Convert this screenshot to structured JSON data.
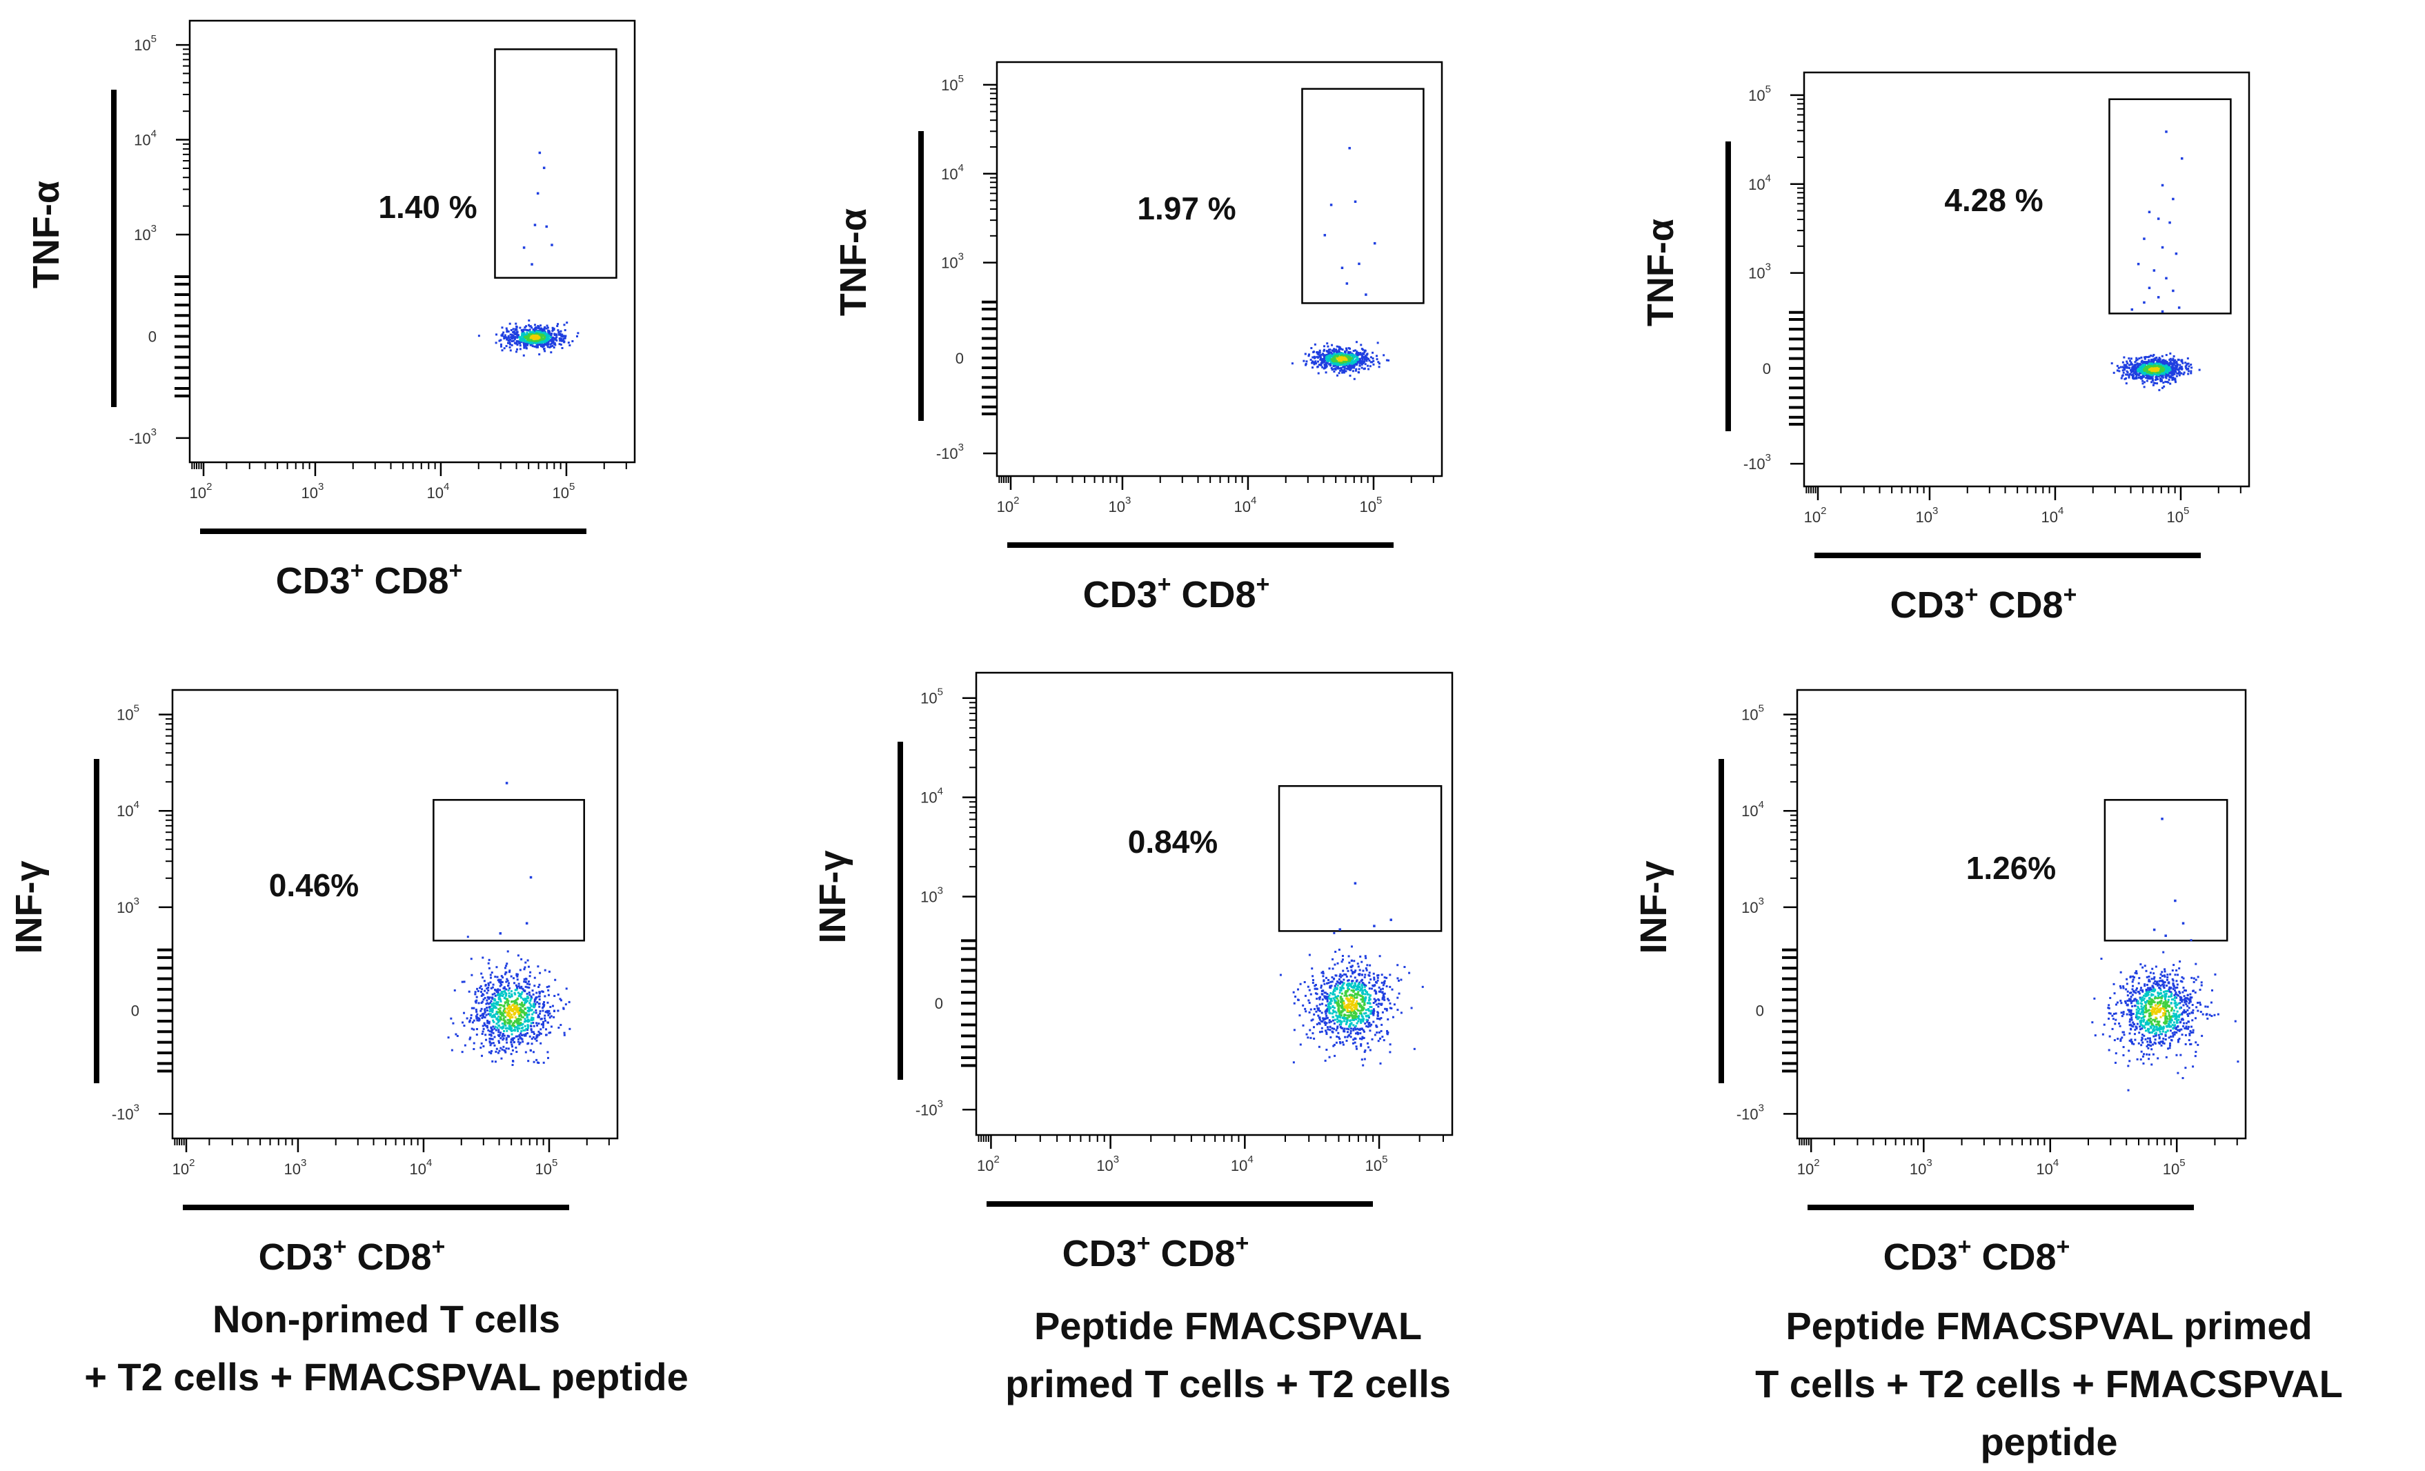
{
  "chart_data": [
    {
      "type": "scatter",
      "panel": "row1-col1",
      "ylabel": "TNF-α",
      "xlabel_base": "CD3",
      "xlabel_sup1": "+",
      "xlabel_mid": " CD8",
      "xlabel_sup2": "+",
      "x_scale": "biexponential",
      "y_scale": "biexponential",
      "x_ticks": [
        {
          "label": "10",
          "exp": "2",
          "value": 100
        },
        {
          "label": "10",
          "exp": "3",
          "value": 1000
        },
        {
          "label": "10",
          "exp": "4",
          "value": 10000
        },
        {
          "label": "10",
          "exp": "5",
          "value": 100000
        }
      ],
      "y_ticks": [
        {
          "label": "-10",
          "exp": "3",
          "value": -1000
        },
        {
          "label": "0",
          "exp": "",
          "value": 0
        },
        {
          "label": "10",
          "exp": "3",
          "value": 1000
        },
        {
          "label": "10",
          "exp": "4",
          "value": 10000
        },
        {
          "label": "10",
          "exp": "5",
          "value": 100000
        }
      ],
      "gate": {
        "x_range": [
          27000,
          250000
        ],
        "y_range": [
          350,
          90000
        ],
        "percent_label": "1.40 %"
      },
      "population": {
        "x_center": 55000,
        "y_center": 0,
        "cells": 600,
        "spread": "tight"
      },
      "sparse_events": [
        [
          60000,
          7500
        ],
        [
          65000,
          5200
        ],
        [
          58000,
          2800
        ],
        [
          55000,
          1300
        ],
        [
          68000,
          1250
        ],
        [
          45000,
          750
        ],
        [
          75000,
          800
        ],
        [
          52000,
          500
        ]
      ]
    },
    {
      "type": "scatter",
      "panel": "row1-col2",
      "ylabel": "TNF-α",
      "xlabel_base": "CD3",
      "xlabel_sup1": "+",
      "xlabel_mid": " CD8",
      "xlabel_sup2": "+",
      "x_scale": "biexponential",
      "y_scale": "biexponential",
      "x_ticks": [
        {
          "label": "10",
          "exp": "2",
          "value": 100
        },
        {
          "label": "10",
          "exp": "3",
          "value": 1000
        },
        {
          "label": "10",
          "exp": "4",
          "value": 10000
        },
        {
          "label": "10",
          "exp": "5",
          "value": 100000
        }
      ],
      "y_ticks": [
        {
          "label": "-10",
          "exp": "3",
          "value": -1000
        },
        {
          "label": "0",
          "exp": "",
          "value": 0
        },
        {
          "label": "10",
          "exp": "3",
          "value": 1000
        },
        {
          "label": "10",
          "exp": "4",
          "value": 10000
        },
        {
          "label": "10",
          "exp": "5",
          "value": 100000
        }
      ],
      "gate": {
        "x_range": [
          27000,
          250000
        ],
        "y_range": [
          350,
          90000
        ],
        "percent_label": "1.97 %"
      },
      "population": {
        "x_center": 55000,
        "y_center": 0,
        "cells": 600,
        "spread": "tight"
      },
      "sparse_events": [
        [
          63000,
          20000
        ],
        [
          45000,
          4600
        ],
        [
          70000,
          5000
        ],
        [
          40000,
          2100
        ],
        [
          100000,
          1700
        ],
        [
          55000,
          900
        ],
        [
          75000,
          1000
        ],
        [
          60000,
          600
        ],
        [
          85000,
          450
        ]
      ]
    },
    {
      "type": "scatter",
      "panel": "row1-col3",
      "ylabel": "TNF-α",
      "xlabel_base": "CD3",
      "xlabel_sup1": "+",
      "xlabel_mid": " CD8",
      "xlabel_sup2": "+",
      "x_scale": "biexponential",
      "y_scale": "biexponential",
      "x_ticks": [
        {
          "label": "10",
          "exp": "2",
          "value": 100
        },
        {
          "label": "10",
          "exp": "3",
          "value": 1000
        },
        {
          "label": "10",
          "exp": "4",
          "value": 10000
        },
        {
          "label": "10",
          "exp": "5",
          "value": 100000
        }
      ],
      "y_ticks": [
        {
          "label": "-10",
          "exp": "3",
          "value": -1000
        },
        {
          "label": "0",
          "exp": "",
          "value": 0
        },
        {
          "label": "10",
          "exp": "3",
          "value": 1000
        },
        {
          "label": "10",
          "exp": "4",
          "value": 10000
        },
        {
          "label": "10",
          "exp": "5",
          "value": 100000
        }
      ],
      "gate": {
        "x_range": [
          27000,
          250000
        ],
        "y_range": [
          350,
          90000
        ],
        "percent_label": "4.28 %"
      },
      "population": {
        "x_center": 60000,
        "y_center": 0,
        "cells": 800,
        "spread": "tight"
      },
      "sparse_events": [
        [
          75000,
          40000
        ],
        [
          100000,
          20000
        ],
        [
          70000,
          10000
        ],
        [
          85000,
          7000
        ],
        [
          55000,
          5000
        ],
        [
          65000,
          4200
        ],
        [
          80000,
          3800
        ],
        [
          50000,
          2500
        ],
        [
          70000,
          2000
        ],
        [
          90000,
          1700
        ],
        [
          45000,
          1300
        ],
        [
          60000,
          1100
        ],
        [
          75000,
          900
        ],
        [
          55000,
          700
        ],
        [
          85000,
          650
        ],
        [
          65000,
          550
        ],
        [
          50000,
          480
        ],
        [
          95000,
          420
        ],
        [
          40000,
          400
        ],
        [
          70000,
          380
        ]
      ]
    },
    {
      "type": "scatter",
      "panel": "row2-col1",
      "ylabel": "INF-γ",
      "xlabel_base": "CD3",
      "xlabel_sup1": "+",
      "xlabel_mid": " CD8",
      "xlabel_sup2": "+",
      "x_scale": "biexponential",
      "y_scale": "biexponential",
      "x_ticks": [
        {
          "label": "10",
          "exp": "2",
          "value": 100
        },
        {
          "label": "10",
          "exp": "3",
          "value": 1000
        },
        {
          "label": "10",
          "exp": "4",
          "value": 10000
        },
        {
          "label": "10",
          "exp": "5",
          "value": 100000
        }
      ],
      "y_ticks": [
        {
          "label": "-10",
          "exp": "3",
          "value": -1000
        },
        {
          "label": "0",
          "exp": "",
          "value": 0
        },
        {
          "label": "10",
          "exp": "3",
          "value": 1000
        },
        {
          "label": "10",
          "exp": "4",
          "value": 10000
        },
        {
          "label": "10",
          "exp": "5",
          "value": 100000
        }
      ],
      "gate": {
        "x_range": [
          12000,
          190000
        ],
        "y_range": [
          450,
          13000
        ],
        "percent_label": "0.46%"
      },
      "population": {
        "x_center": 50000,
        "y_center": 0,
        "cells": 900,
        "spread": "round"
      },
      "sparse_events": [
        [
          45000,
          20000
        ],
        [
          70000,
          2100
        ],
        [
          65000,
          700
        ],
        [
          40000,
          550
        ]
      ]
    },
    {
      "type": "scatter",
      "panel": "row2-col2",
      "ylabel": "INF-γ",
      "xlabel_base": "CD3",
      "xlabel_sup1": "+",
      "xlabel_mid": " CD8",
      "xlabel_sup2": "+",
      "x_scale": "biexponential",
      "y_scale": "biexponential",
      "x_ticks": [
        {
          "label": "10",
          "exp": "2",
          "value": 100
        },
        {
          "label": "10",
          "exp": "3",
          "value": 1000
        },
        {
          "label": "10",
          "exp": "4",
          "value": 10000
        },
        {
          "label": "10",
          "exp": "5",
          "value": 100000
        }
      ],
      "y_ticks": [
        {
          "label": "-10",
          "exp": "3",
          "value": -1000
        },
        {
          "label": "0",
          "exp": "",
          "value": 0
        },
        {
          "label": "10",
          "exp": "3",
          "value": 1000
        },
        {
          "label": "10",
          "exp": "4",
          "value": 10000
        },
        {
          "label": "10",
          "exp": "5",
          "value": 100000
        }
      ],
      "gate": {
        "x_range": [
          18000,
          290000
        ],
        "y_range": [
          450,
          13000
        ],
        "percent_label": "0.84%"
      },
      "population": {
        "x_center": 60000,
        "y_center": 0,
        "cells": 900,
        "spread": "round"
      },
      "sparse_events": [
        [
          65000,
          1400
        ],
        [
          120000,
          600
        ],
        [
          90000,
          520
        ],
        [
          50000,
          480
        ]
      ]
    },
    {
      "type": "scatter",
      "panel": "row2-col3",
      "ylabel": "INF-γ",
      "xlabel_base": "CD3",
      "xlabel_sup1": "+",
      "xlabel_mid": " CD8",
      "xlabel_sup2": "+",
      "x_scale": "biexponential",
      "y_scale": "biexponential",
      "x_ticks": [
        {
          "label": "10",
          "exp": "2",
          "value": 100
        },
        {
          "label": "10",
          "exp": "3",
          "value": 1000
        },
        {
          "label": "10",
          "exp": "4",
          "value": 10000
        },
        {
          "label": "10",
          "exp": "5",
          "value": 100000
        }
      ],
      "y_ticks": [
        {
          "label": "-10",
          "exp": "3",
          "value": -1000
        },
        {
          "label": "0",
          "exp": "",
          "value": 0
        },
        {
          "label": "10",
          "exp": "3",
          "value": 1000
        },
        {
          "label": "10",
          "exp": "4",
          "value": 10000
        },
        {
          "label": "10",
          "exp": "5",
          "value": 100000
        }
      ],
      "gate": {
        "x_range": [
          27000,
          250000
        ],
        "y_range": [
          450,
          13000
        ],
        "percent_label": "1.26%"
      },
      "population": {
        "x_center": 70000,
        "y_center": 0,
        "cells": 900,
        "spread": "round"
      },
      "sparse_events": [
        [
          75000,
          8500
        ],
        [
          95000,
          1200
        ],
        [
          110000,
          700
        ],
        [
          65000,
          600
        ],
        [
          80000,
          520
        ]
      ]
    }
  ],
  "captions": [
    {
      "line1": "Non-primed T cells",
      "line2": "+ T2 cells + FMACSPVAL peptide"
    },
    {
      "line1": "Peptide FMACSPVAL",
      "line2": "primed T cells + T2 cells"
    },
    {
      "line1": "Peptide FMACSPVAL primed",
      "line2": "T cells + T2 cells + FMACSPVAL peptide"
    }
  ],
  "colors": {
    "axis": "#000000",
    "gate": "#000000",
    "events": "#1f3fe0",
    "density_mid": "#00c8c8",
    "density_high": "#40d040",
    "density_peak": "#f0d000"
  }
}
